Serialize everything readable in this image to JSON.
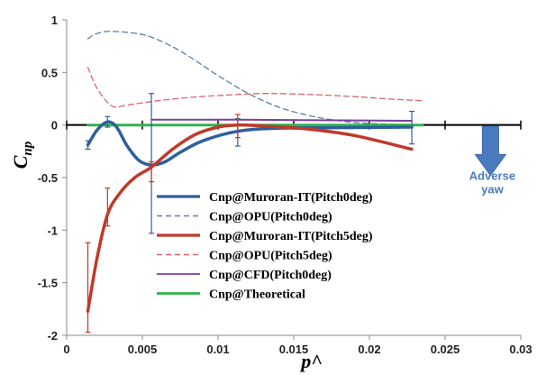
{
  "chart_data": {
    "type": "line",
    "xlabel": "p^",
    "ylabel": "Cnp",
    "xlim": [
      0,
      0.03
    ],
    "ylim": [
      -2,
      1
    ],
    "x_ticks": [
      0,
      0.005,
      0.01,
      0.015,
      0.02,
      0.025,
      0.03
    ],
    "x_tick_labels": [
      "0",
      "0.005",
      "0.01",
      "0.015",
      "0.02",
      "0.025",
      "0.03"
    ],
    "y_ticks": [
      1,
      0.5,
      0,
      -0.5,
      -1,
      -1.5,
      -2
    ],
    "y_tick_labels": [
      "1",
      "0.5",
      "0",
      "-0.5",
      "-1",
      "-1.5",
      "-2"
    ],
    "grid": false,
    "legend_position": "center",
    "annotation": {
      "text": [
        "Adverse",
        "yaw"
      ],
      "arrow": "down",
      "x": 0.028,
      "color": "#4a7bbf"
    },
    "series": [
      {
        "name": "Cnp@Muroran-IT(Pitch0deg)",
        "color": "#2f5f9e",
        "style": "solid",
        "width": 3.5,
        "points": [
          [
            0.0014,
            -0.19
          ],
          [
            0.002,
            -0.05
          ],
          [
            0.0027,
            0.03
          ],
          [
            0.0033,
            -0.02
          ],
          [
            0.004,
            -0.2
          ],
          [
            0.0048,
            -0.34
          ],
          [
            0.0056,
            -0.38
          ],
          [
            0.0065,
            -0.35
          ],
          [
            0.0075,
            -0.26
          ],
          [
            0.009,
            -0.15
          ],
          [
            0.0113,
            -0.06
          ],
          [
            0.014,
            -0.03
          ],
          [
            0.018,
            -0.025
          ],
          [
            0.0228,
            -0.02
          ]
        ],
        "error_bars": [
          {
            "x": 0.0014,
            "low": -0.23,
            "high": -0.15
          },
          {
            "x": 0.0027,
            "low": -0.02,
            "high": 0.08
          },
          {
            "x": 0.0056,
            "low": -1.03,
            "high": 0.3
          },
          {
            "x": 0.0113,
            "low": -0.2,
            "high": 0.06
          },
          {
            "x": 0.0228,
            "low": -0.18,
            "high": 0.13
          }
        ]
      },
      {
        "name": "Cnp@OPU(Pitch0deg)",
        "color": "#5b7fa6",
        "style": "dashed",
        "width": 1.3,
        "points": [
          [
            0.0014,
            0.82
          ],
          [
            0.002,
            0.87
          ],
          [
            0.003,
            0.89
          ],
          [
            0.005,
            0.86
          ],
          [
            0.0065,
            0.78
          ],
          [
            0.008,
            0.66
          ],
          [
            0.01,
            0.47
          ],
          [
            0.012,
            0.3
          ],
          [
            0.014,
            0.17
          ],
          [
            0.016,
            0.09
          ],
          [
            0.018,
            0.04
          ],
          [
            0.02,
            0.015
          ],
          [
            0.0235,
            0.0
          ]
        ]
      },
      {
        "name": "Cnp@Muroran-IT(Pitch5deg)",
        "color": "#c0392b",
        "style": "solid",
        "width": 3.5,
        "points": [
          [
            0.0014,
            -1.77
          ],
          [
            0.002,
            -1.27
          ],
          [
            0.0027,
            -0.85
          ],
          [
            0.0035,
            -0.65
          ],
          [
            0.0045,
            -0.5
          ],
          [
            0.0056,
            -0.4
          ],
          [
            0.007,
            -0.23
          ],
          [
            0.0085,
            -0.09
          ],
          [
            0.01,
            -0.02
          ],
          [
            0.0113,
            0.0
          ],
          [
            0.013,
            -0.01
          ],
          [
            0.016,
            -0.04
          ],
          [
            0.019,
            -0.1
          ],
          [
            0.0228,
            -0.23
          ]
        ],
        "error_bars": [
          {
            "x": 0.0014,
            "low": -1.97,
            "high": -1.12
          },
          {
            "x": 0.0027,
            "low": -0.96,
            "high": -0.6
          },
          {
            "x": 0.0056,
            "low": -0.54,
            "high": -0.35
          },
          {
            "x": 0.0113,
            "low": -0.12,
            "high": 0.1
          }
        ]
      },
      {
        "name": "Cnp@OPU(Pitch5deg)",
        "color": "#d9636b",
        "style": "dashed",
        "width": 1.3,
        "points": [
          [
            0.0014,
            0.55
          ],
          [
            0.002,
            0.35
          ],
          [
            0.003,
            0.18
          ],
          [
            0.004,
            0.19
          ],
          [
            0.006,
            0.23
          ],
          [
            0.008,
            0.26
          ],
          [
            0.01,
            0.28
          ],
          [
            0.013,
            0.3
          ],
          [
            0.016,
            0.29
          ],
          [
            0.019,
            0.27
          ],
          [
            0.021,
            0.25
          ],
          [
            0.0235,
            0.23
          ]
        ]
      },
      {
        "name": "Cnp@CFD(Pitch0deg)",
        "color": "#7b3fa0",
        "style": "solid",
        "width": 2,
        "points": [
          [
            0.0056,
            0.05
          ],
          [
            0.0113,
            0.05
          ],
          [
            0.0228,
            0.04
          ]
        ]
      },
      {
        "name": "Cnp@Theoretical",
        "color": "#2db34a",
        "style": "solid",
        "width": 3,
        "points": [
          [
            0.0014,
            0.0
          ],
          [
            0.0235,
            0.0
          ]
        ]
      }
    ]
  }
}
